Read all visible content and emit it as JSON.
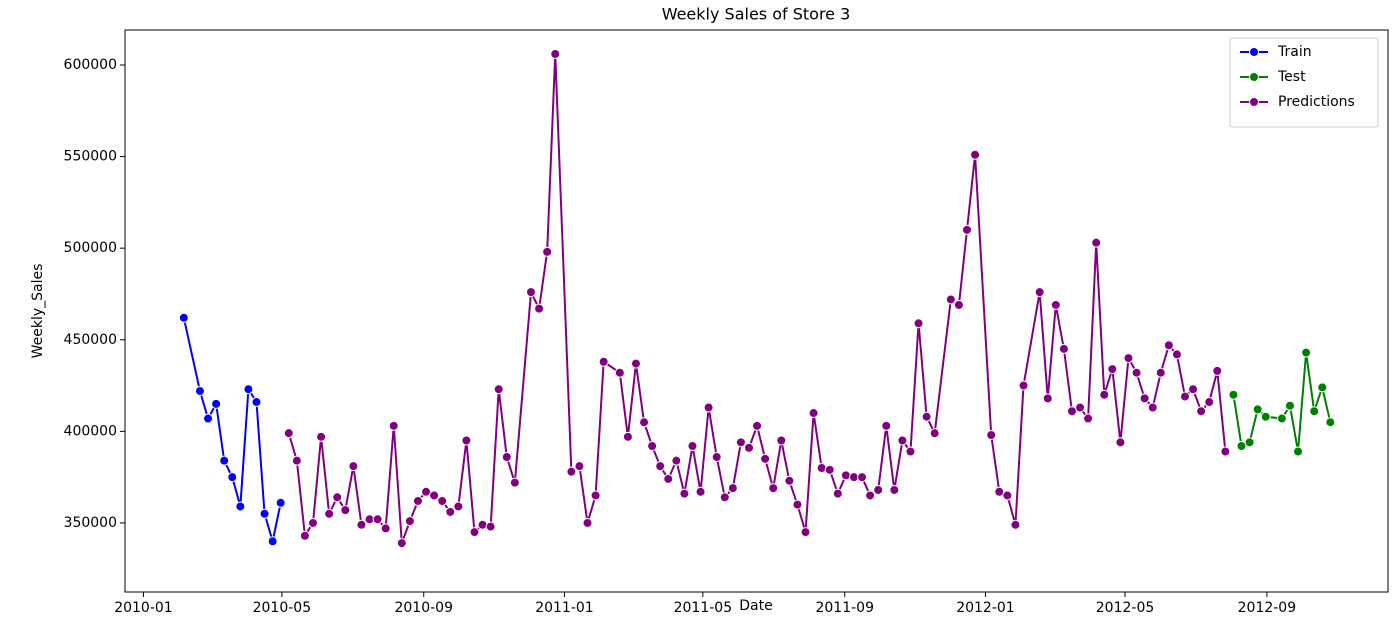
{
  "chart_data": {
    "type": "line",
    "title": "Weekly Sales of Store 3",
    "x_label": "Date",
    "y_label": "Weekly_Sales",
    "legend": "upper right",
    "grid": false,
    "marker": "o",
    "xlim": [
      "2009-12-16",
      "2012-12-15"
    ],
    "xticks": [
      {
        "value": "2010-01-01",
        "label": "2010-01"
      },
      {
        "value": "2010-05-01",
        "label": "2010-05"
      },
      {
        "value": "2010-09-01",
        "label": "2010-09"
      },
      {
        "value": "2011-01-01",
        "label": "2011-01"
      },
      {
        "value": "2011-05-01",
        "label": "2011-05"
      },
      {
        "value": "2011-09-01",
        "label": "2011-09"
      },
      {
        "value": "2012-01-01",
        "label": "2012-01"
      },
      {
        "value": "2012-05-01",
        "label": "2012-05"
      },
      {
        "value": "2012-09-01",
        "label": "2012-09"
      }
    ],
    "ylim": [
      312300,
      619100
    ],
    "yticks": [
      350000,
      400000,
      450000,
      500000,
      550000,
      600000
    ],
    "series": [
      {
        "name": "Train",
        "color": "#0000ff",
        "x": [
          "2010-02-05",
          "2010-02-19",
          "2010-02-26",
          "2010-03-05",
          "2010-03-12",
          "2010-03-19",
          "2010-03-26",
          "2010-04-02",
          "2010-04-09",
          "2010-04-16",
          "2010-04-23",
          "2010-04-30"
        ],
        "values": [
          462000,
          422000,
          407000,
          415000,
          384000,
          375000,
          359000,
          423000,
          416000,
          355000,
          340000,
          361000
        ]
      },
      {
        "name": "Test",
        "color": "#008000",
        "x": [
          "2012-08-03",
          "2012-08-10",
          "2012-08-17",
          "2012-08-24",
          "2012-08-31",
          "2012-09-14",
          "2012-09-21",
          "2012-09-28",
          "2012-10-05",
          "2012-10-12",
          "2012-10-19",
          "2012-10-26"
        ],
        "values": [
          420000,
          392000,
          394000,
          412000,
          408000,
          407000,
          414000,
          389000,
          443000,
          411000,
          424000,
          405000
        ]
      },
      {
        "name": "Predictions",
        "color": "#800080",
        "x": [
          "2010-05-07",
          "2010-05-14",
          "2010-05-21",
          "2010-05-28",
          "2010-06-04",
          "2010-06-11",
          "2010-06-18",
          "2010-06-25",
          "2010-07-02",
          "2010-07-09",
          "2010-07-16",
          "2010-07-23",
          "2010-07-30",
          "2010-08-06",
          "2010-08-13",
          "2010-08-20",
          "2010-08-27",
          "2010-09-03",
          "2010-09-10",
          "2010-09-17",
          "2010-09-24",
          "2010-10-01",
          "2010-10-08",
          "2010-10-15",
          "2010-10-22",
          "2010-10-29",
          "2010-11-05",
          "2010-11-12",
          "2010-11-19",
          "2010-12-03",
          "2010-12-10",
          "2010-12-17",
          "2010-12-24",
          "2011-01-07",
          "2011-01-14",
          "2011-01-21",
          "2011-01-28",
          "2011-02-04",
          "2011-02-18",
          "2011-02-25",
          "2011-03-04",
          "2011-03-11",
          "2011-03-18",
          "2011-03-25",
          "2011-04-01",
          "2011-04-08",
          "2011-04-15",
          "2011-04-22",
          "2011-04-29",
          "2011-05-06",
          "2011-05-13",
          "2011-05-20",
          "2011-05-27",
          "2011-06-03",
          "2011-06-10",
          "2011-06-17",
          "2011-06-24",
          "2011-07-01",
          "2011-07-08",
          "2011-07-15",
          "2011-07-22",
          "2011-07-29",
          "2011-08-05",
          "2011-08-12",
          "2011-08-19",
          "2011-08-26",
          "2011-09-02",
          "2011-09-09",
          "2011-09-16",
          "2011-09-23",
          "2011-09-30",
          "2011-10-07",
          "2011-10-14",
          "2011-10-21",
          "2011-10-28",
          "2011-11-04",
          "2011-11-11",
          "2011-11-18",
          "2011-12-02",
          "2011-12-09",
          "2011-12-16",
          "2011-12-23",
          "2012-01-06",
          "2012-01-13",
          "2012-01-20",
          "2012-01-27",
          "2012-02-03",
          "2012-02-17",
          "2012-02-24",
          "2012-03-02",
          "2012-03-09",
          "2012-03-16",
          "2012-03-23",
          "2012-03-30",
          "2012-04-06",
          "2012-04-13",
          "2012-04-20",
          "2012-04-27",
          "2012-05-04",
          "2012-05-11",
          "2012-05-18",
          "2012-05-25",
          "2012-06-01",
          "2012-06-08",
          "2012-06-15",
          "2012-06-22",
          "2012-06-29",
          "2012-07-06",
          "2012-07-13",
          "2012-07-20",
          "2012-07-27"
        ],
        "values": [
          399000,
          384000,
          343000,
          350000,
          397000,
          355000,
          364000,
          357000,
          381000,
          349000,
          352000,
          352000,
          347000,
          403000,
          339000,
          351000,
          362000,
          367000,
          365000,
          362000,
          356000,
          359000,
          395000,
          345000,
          349000,
          348000,
          423000,
          386000,
          372000,
          476000,
          467000,
          498000,
          606000,
          378000,
          381000,
          350000,
          365000,
          438000,
          432000,
          397000,
          437000,
          405000,
          392000,
          381000,
          374000,
          384000,
          366000,
          392000,
          367000,
          413000,
          386000,
          364000,
          369000,
          394000,
          391000,
          403000,
          385000,
          369000,
          395000,
          373000,
          360000,
          345000,
          410000,
          380000,
          379000,
          366000,
          376000,
          375000,
          375000,
          365000,
          368000,
          403000,
          368000,
          395000,
          389000,
          459000,
          408000,
          399000,
          472000,
          469000,
          510000,
          551000,
          398000,
          367000,
          365000,
          349000,
          425000,
          476000,
          418000,
          469000,
          445000,
          411000,
          413000,
          407000,
          503000,
          420000,
          434000,
          394000,
          440000,
          432000,
          418000,
          413000,
          432000,
          447000,
          442000,
          419000,
          423000,
          411000,
          416000,
          433000,
          389000
        ]
      }
    ]
  }
}
